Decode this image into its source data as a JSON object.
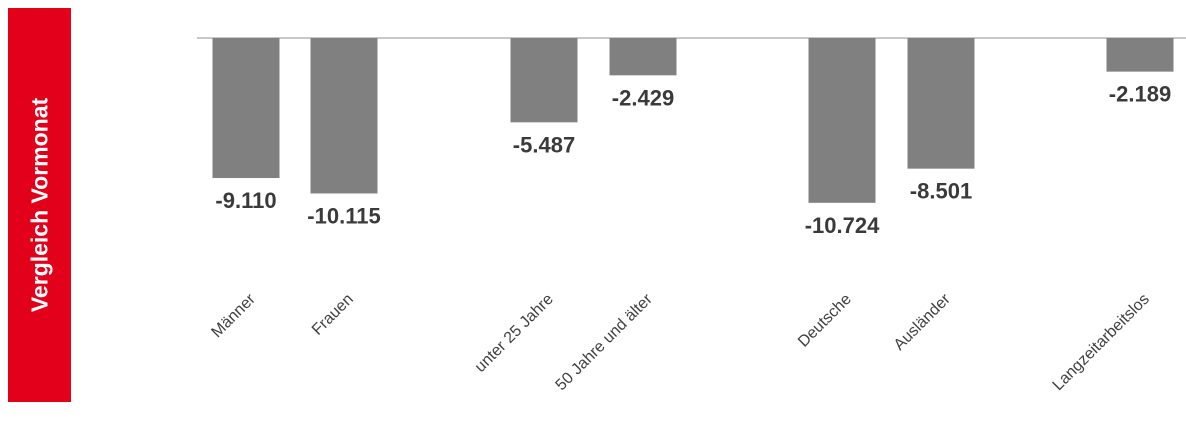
{
  "banner": {
    "text": "Vergleich Vormonat",
    "color": "#e2001a"
  },
  "chart_data": {
    "type": "bar",
    "categories": [
      "Männer",
      "Frauen",
      "unter 25 Jahre",
      "50 Jahre und älter",
      "Deutsche",
      "Ausländer",
      "Langzeitarbeitslos"
    ],
    "values": [
      -9110,
      -10115,
      -5487,
      -2429,
      -10724,
      -8501,
      -2189
    ],
    "value_labels": [
      "-9.110",
      "-10.115",
      "-5.487",
      "-2.429",
      "-10.724",
      "-8.501",
      "-2.189"
    ],
    "title": "",
    "bar_color": "#808080",
    "grid": false,
    "legend": "none"
  }
}
